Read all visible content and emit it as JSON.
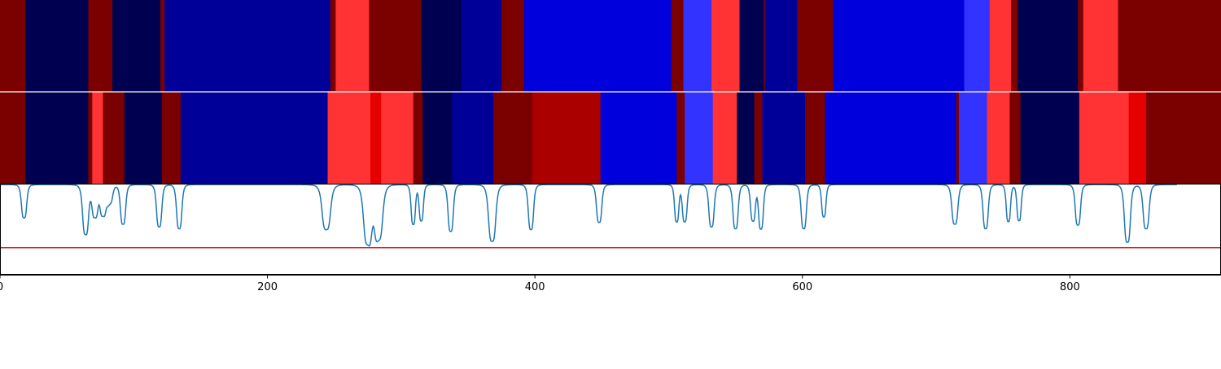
{
  "chart_data": {
    "type": "heatmap",
    "colors": {
      "navy": "#000050",
      "dark_blue": "#000098",
      "blue": "#0000dc",
      "light_blue": "#3333ff",
      "light_red": "#ff3333",
      "red": "#e60000",
      "mid_red": "#aa0000",
      "dark_red": "#7b0000",
      "line": "#1f77b4",
      "threshold_line": "#d62728"
    },
    "x_ticks": [
      0,
      200,
      400,
      600,
      800
    ],
    "x_tick_labels": [
      "0",
      "200",
      "400",
      "600",
      "800"
    ],
    "xlim": [
      0,
      913
    ],
    "strip_1": [
      {
        "start": 0,
        "end": 19,
        "color": "dark_red"
      },
      {
        "start": 19,
        "end": 66,
        "color": "navy"
      },
      {
        "start": 66,
        "end": 84,
        "color": "dark_red"
      },
      {
        "start": 84,
        "end": 120,
        "color": "navy"
      },
      {
        "start": 120,
        "end": 123,
        "color": "dark_red"
      },
      {
        "start": 123,
        "end": 247,
        "color": "dark_blue"
      },
      {
        "start": 247,
        "end": 251,
        "color": "dark_red"
      },
      {
        "start": 251,
        "end": 276,
        "color": "light_red"
      },
      {
        "start": 276,
        "end": 315,
        "color": "dark_red"
      },
      {
        "start": 315,
        "end": 345,
        "color": "navy"
      },
      {
        "start": 345,
        "end": 375,
        "color": "dark_blue"
      },
      {
        "start": 375,
        "end": 392,
        "color": "dark_red"
      },
      {
        "start": 392,
        "end": 502,
        "color": "blue"
      },
      {
        "start": 502,
        "end": 511,
        "color": "dark_red"
      },
      {
        "start": 511,
        "end": 532,
        "color": "light_blue"
      },
      {
        "start": 532,
        "end": 553,
        "color": "light_red"
      },
      {
        "start": 553,
        "end": 571,
        "color": "navy"
      },
      {
        "start": 571,
        "end": 572,
        "color": "dark_red"
      },
      {
        "start": 572,
        "end": 596,
        "color": "dark_blue"
      },
      {
        "start": 596,
        "end": 623,
        "color": "dark_red"
      },
      {
        "start": 623,
        "end": 721,
        "color": "blue"
      },
      {
        "start": 721,
        "end": 740,
        "color": "light_blue"
      },
      {
        "start": 740,
        "end": 756,
        "color": "light_red"
      },
      {
        "start": 756,
        "end": 761,
        "color": "dark_red"
      },
      {
        "start": 761,
        "end": 806,
        "color": "navy"
      },
      {
        "start": 806,
        "end": 810,
        "color": "dark_red"
      },
      {
        "start": 810,
        "end": 836,
        "color": "light_red"
      },
      {
        "start": 836,
        "end": 913,
        "color": "dark_red"
      }
    ],
    "strip_2": [
      {
        "start": 0,
        "end": 19,
        "color": "dark_red"
      },
      {
        "start": 19,
        "end": 66,
        "color": "navy"
      },
      {
        "start": 66,
        "end": 69,
        "color": "dark_red"
      },
      {
        "start": 69,
        "end": 77,
        "color": "light_red"
      },
      {
        "start": 77,
        "end": 93,
        "color": "dark_red"
      },
      {
        "start": 93,
        "end": 121,
        "color": "navy"
      },
      {
        "start": 121,
        "end": 135,
        "color": "dark_red"
      },
      {
        "start": 135,
        "end": 245,
        "color": "dark_blue"
      },
      {
        "start": 245,
        "end": 277,
        "color": "light_red"
      },
      {
        "start": 277,
        "end": 285,
        "color": "red"
      },
      {
        "start": 285,
        "end": 309,
        "color": "light_red"
      },
      {
        "start": 309,
        "end": 316,
        "color": "dark_red"
      },
      {
        "start": 316,
        "end": 338,
        "color": "navy"
      },
      {
        "start": 338,
        "end": 369,
        "color": "dark_blue"
      },
      {
        "start": 369,
        "end": 398,
        "color": "dark_red"
      },
      {
        "start": 398,
        "end": 449,
        "color": "mid_red"
      },
      {
        "start": 449,
        "end": 506,
        "color": "blue"
      },
      {
        "start": 506,
        "end": 512,
        "color": "dark_red"
      },
      {
        "start": 512,
        "end": 533,
        "color": "light_blue"
      },
      {
        "start": 533,
        "end": 551,
        "color": "light_red"
      },
      {
        "start": 551,
        "end": 564,
        "color": "navy"
      },
      {
        "start": 564,
        "end": 570,
        "color": "dark_red"
      },
      {
        "start": 570,
        "end": 602,
        "color": "dark_blue"
      },
      {
        "start": 602,
        "end": 617,
        "color": "dark_red"
      },
      {
        "start": 617,
        "end": 715,
        "color": "blue"
      },
      {
        "start": 715,
        "end": 717,
        "color": "dark_red"
      },
      {
        "start": 717,
        "end": 738,
        "color": "light_blue"
      },
      {
        "start": 738,
        "end": 755,
        "color": "light_red"
      },
      {
        "start": 755,
        "end": 763,
        "color": "dark_red"
      },
      {
        "start": 763,
        "end": 807,
        "color": "navy"
      },
      {
        "start": 807,
        "end": 844,
        "color": "light_red"
      },
      {
        "start": 844,
        "end": 857,
        "color": "red"
      },
      {
        "start": 857,
        "end": 913,
        "color": "dark_red"
      }
    ],
    "line_panel": {
      "baseline": 0,
      "threshold": -0.7,
      "ylim": [
        -1,
        0.01
      ],
      "dips": [
        {
          "center": 18,
          "depth": 0.37,
          "width": 2.2
        },
        {
          "center": 64,
          "depth": 0.55,
          "width": 2.5
        },
        {
          "center": 71,
          "depth": 0.35,
          "width": 2.5
        },
        {
          "center": 77,
          "depth": 0.33,
          "width": 2.5
        },
        {
          "center": 82,
          "depth": 0.2,
          "width": 2.5
        },
        {
          "center": 92,
          "depth": 0.44,
          "width": 2.2
        },
        {
          "center": 119,
          "depth": 0.47,
          "width": 2.2
        },
        {
          "center": 134,
          "depth": 0.49,
          "width": 2.2
        },
        {
          "center": 244,
          "depth": 0.5,
          "width": 3.5
        },
        {
          "center": 275,
          "depth": 0.65,
          "width": 3.5
        },
        {
          "center": 283,
          "depth": 0.6,
          "width": 3.5
        },
        {
          "center": 309,
          "depth": 0.44,
          "width": 1.8
        },
        {
          "center": 315,
          "depth": 0.4,
          "width": 1.8
        },
        {
          "center": 337,
          "depth": 0.52,
          "width": 2.2
        },
        {
          "center": 368,
          "depth": 0.63,
          "width": 3.0
        },
        {
          "center": 397,
          "depth": 0.5,
          "width": 2.2
        },
        {
          "center": 448,
          "depth": 0.42,
          "width": 2.2
        },
        {
          "center": 506,
          "depth": 0.41,
          "width": 1.8
        },
        {
          "center": 512,
          "depth": 0.41,
          "width": 2.0
        },
        {
          "center": 532,
          "depth": 0.47,
          "width": 2.2
        },
        {
          "center": 550,
          "depth": 0.49,
          "width": 2.2
        },
        {
          "center": 563,
          "depth": 0.4,
          "width": 2.0
        },
        {
          "center": 569,
          "depth": 0.49,
          "width": 2.0
        },
        {
          "center": 601,
          "depth": 0.49,
          "width": 2.2
        },
        {
          "center": 616,
          "depth": 0.36,
          "width": 1.8
        },
        {
          "center": 714,
          "depth": 0.44,
          "width": 2.5
        },
        {
          "center": 737,
          "depth": 0.49,
          "width": 2.2
        },
        {
          "center": 754,
          "depth": 0.41,
          "width": 1.8
        },
        {
          "center": 762,
          "depth": 0.4,
          "width": 1.8
        },
        {
          "center": 806,
          "depth": 0.45,
          "width": 2.2
        },
        {
          "center": 843,
          "depth": 0.64,
          "width": 2.5
        },
        {
          "center": 857,
          "depth": 0.49,
          "width": 2.5
        }
      ]
    }
  }
}
